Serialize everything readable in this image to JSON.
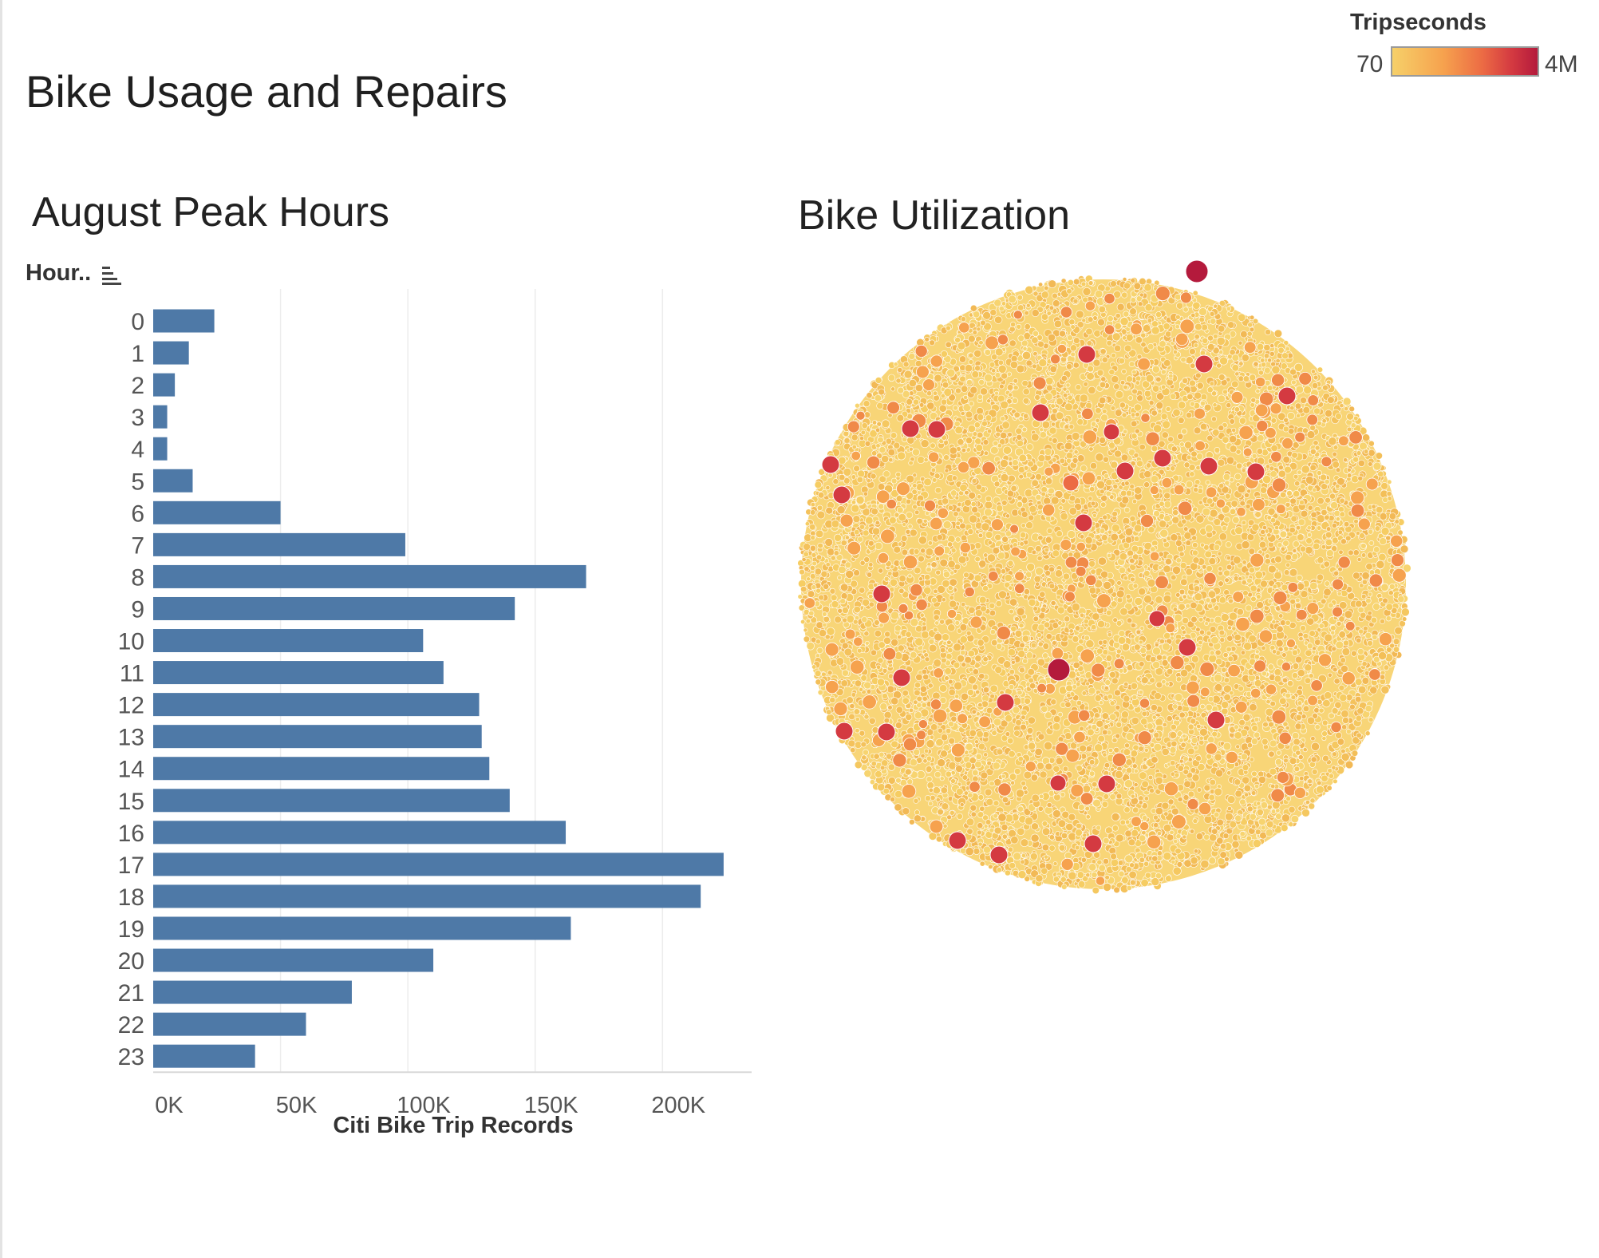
{
  "dashboard": {
    "title": "Bike Usage and Repairs"
  },
  "legend": {
    "title": "Tripseconds",
    "min_label": "70",
    "max_label": "4M",
    "colors": [
      "#f6d069",
      "#f6a24e",
      "#ec6b44",
      "#d43a41",
      "#b41a3c"
    ]
  },
  "chart_data": [
    {
      "type": "bar",
      "orientation": "horizontal",
      "title": "August Peak Hours",
      "y_header": "Hour..",
      "xlabel": "Citi Bike Trip Records",
      "categories": [
        "0",
        "1",
        "2",
        "3",
        "4",
        "5",
        "6",
        "7",
        "8",
        "9",
        "10",
        "11",
        "12",
        "13",
        "14",
        "15",
        "16",
        "17",
        "18",
        "19",
        "20",
        "21",
        "22",
        "23"
      ],
      "values": [
        24000,
        14000,
        8500,
        5500,
        5500,
        15500,
        50000,
        99000,
        170000,
        142000,
        106000,
        114000,
        128000,
        129000,
        132000,
        140000,
        162000,
        224000,
        215000,
        164000,
        110000,
        78000,
        60000,
        40000
      ],
      "xlim": [
        0,
        235000
      ],
      "ticks": [
        0,
        50000,
        100000,
        150000,
        200000
      ],
      "tick_labels": [
        "0K",
        "50K",
        "100K",
        "150K",
        "200K"
      ],
      "color": "#4e79a7",
      "grid": true
    },
    {
      "type": "scatter",
      "subtype": "packed-bubble",
      "title": "Bike Utilization",
      "color_measure": "Tripseconds",
      "color_range": [
        70,
        4000000
      ],
      "color_scale": "sequential yellow-orange-red",
      "typical_value": "low (yellow)",
      "grid": false
    }
  ]
}
